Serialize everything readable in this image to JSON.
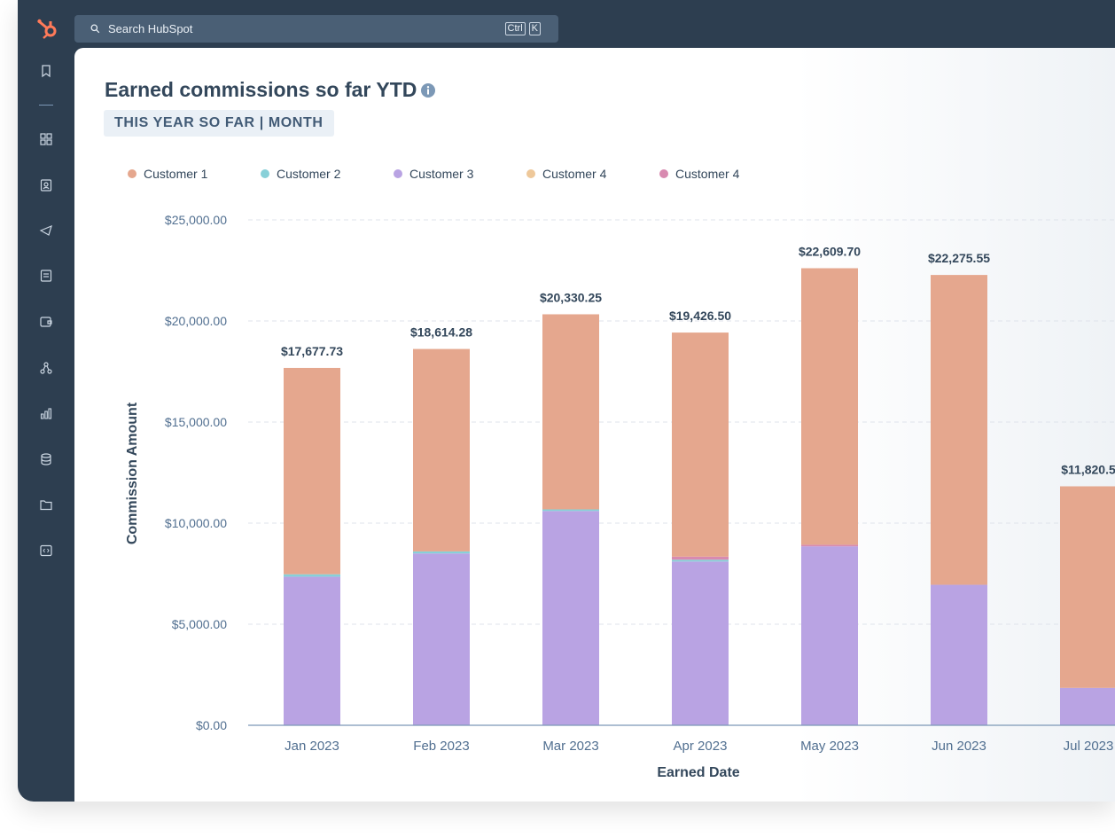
{
  "search": {
    "placeholder": "Search HubSpot",
    "shortcut_key_1": "Ctrl",
    "shortcut_key_2": "K"
  },
  "nav": {
    "icons": [
      "bookmark-icon",
      "dashboard-icon",
      "contacts-icon",
      "marketing-icon",
      "content-icon",
      "commerce-icon",
      "automation-icon",
      "reporting-icon",
      "data-icon",
      "library-icon",
      "development-icon"
    ]
  },
  "report": {
    "title": "Earned commissions so far YTD",
    "subtitle": "THIS YEAR SO FAR | MONTH"
  },
  "colors": {
    "customer1": "#e5a78e",
    "customer2": "#87d0d8",
    "customer3": "#b9a3e3",
    "customer4a": "#eec89a",
    "customer4b": "#d88ab0"
  },
  "chart_data": {
    "type": "bar",
    "stacked": true,
    "xlabel": "Earned Date",
    "ylabel": "Commission Amount",
    "ylim": [
      0,
      25000
    ],
    "yticks": [
      "$0.00",
      "$5,000.00",
      "$10,000.00",
      "$15,000.00",
      "$20,000.00",
      "$25,000.00"
    ],
    "ytick_values": [
      0,
      5000,
      10000,
      15000,
      20000,
      25000
    ],
    "categories": [
      "Jan 2023",
      "Feb 2023",
      "Mar 2023",
      "Apr 2023",
      "May 2023",
      "Jun 2023",
      "Jul 2023"
    ],
    "totals": [
      "$17,677.73",
      "$18,614.28",
      "$20,330.25",
      "$19,426.50",
      "$22,609.70",
      "$22,275.55",
      "$11,820.5"
    ],
    "series": [
      {
        "name": "Customer 3",
        "color": "#b9a3e3",
        "values": [
          7350,
          8500,
          10600,
          8100,
          8850,
          6950,
          1850
        ]
      },
      {
        "name": "Customer 2",
        "color": "#87d0d8",
        "values": [
          120,
          100,
          80,
          90,
          0,
          0,
          0
        ]
      },
      {
        "name": "Customer 4",
        "color": "#eec89a",
        "values": [
          0,
          0,
          0,
          0,
          0,
          0,
          0
        ]
      },
      {
        "name": "Customer 4",
        "color": "#d88ab0",
        "values": [
          0,
          0,
          0,
          150,
          80,
          0,
          0
        ]
      },
      {
        "name": "Customer 1",
        "color": "#e5a78e",
        "values": [
          10207.73,
          10014.28,
          9650.25,
          11086.5,
          13679.7,
          15325.55,
          9970.5
        ]
      }
    ],
    "legend": [
      {
        "name": "Customer 1",
        "color": "#e5a78e"
      },
      {
        "name": "Customer 2",
        "color": "#87d0d8"
      },
      {
        "name": "Customer 3",
        "color": "#b9a3e3"
      },
      {
        "name": "Customer 4",
        "color": "#eec89a"
      },
      {
        "name": "Customer 4",
        "color": "#d88ab0"
      }
    ]
  }
}
